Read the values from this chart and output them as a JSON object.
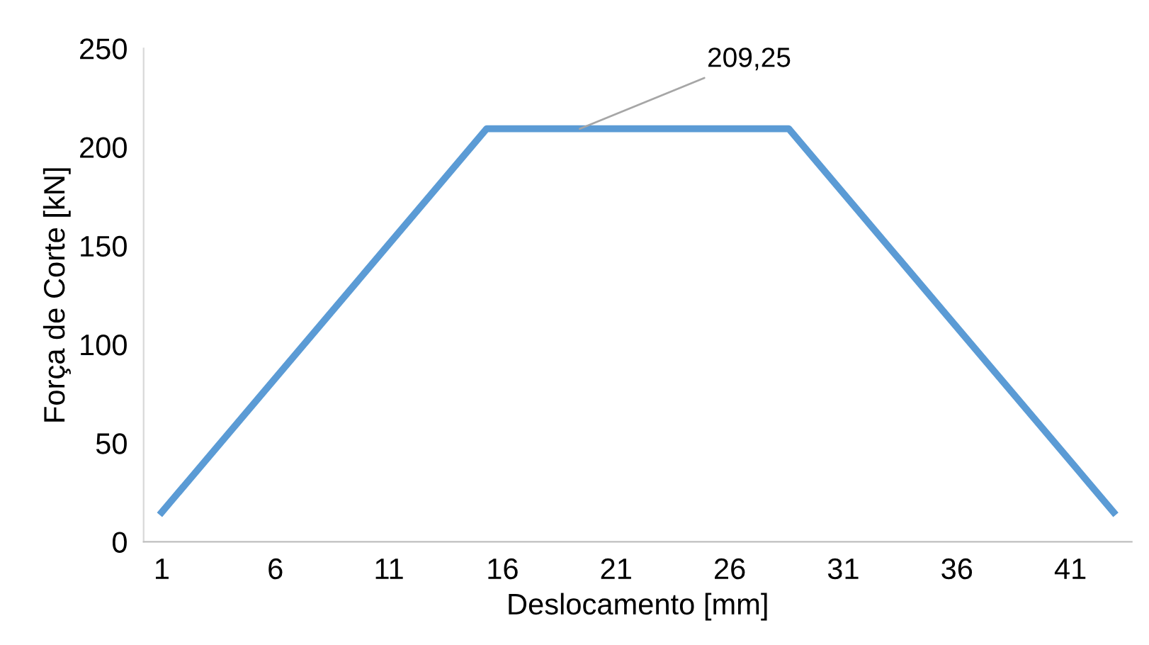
{
  "chart_data": {
    "type": "line",
    "xlabel": "Deslocamento [mm]",
    "ylabel": "Força de Corte [kN]",
    "x": [
      1,
      15.3,
      28.6,
      42.9
    ],
    "series": [
      {
        "color": "#5b9bd5",
        "values": [
          15,
          209.25,
          209.25,
          15
        ]
      }
    ],
    "xlim": [
      0.2,
      43.7
    ],
    "xticks": [
      1,
      6,
      11,
      16,
      21,
      26,
      31,
      36,
      41
    ],
    "ylim": [
      0,
      250
    ],
    "yticks": [
      0,
      50,
      100,
      150,
      200,
      250
    ],
    "grid": false,
    "marker": "none",
    "line_style": "solid",
    "annotations": [
      {
        "text": "209,25",
        "x": 19.4,
        "y": 209.25
      }
    ]
  }
}
